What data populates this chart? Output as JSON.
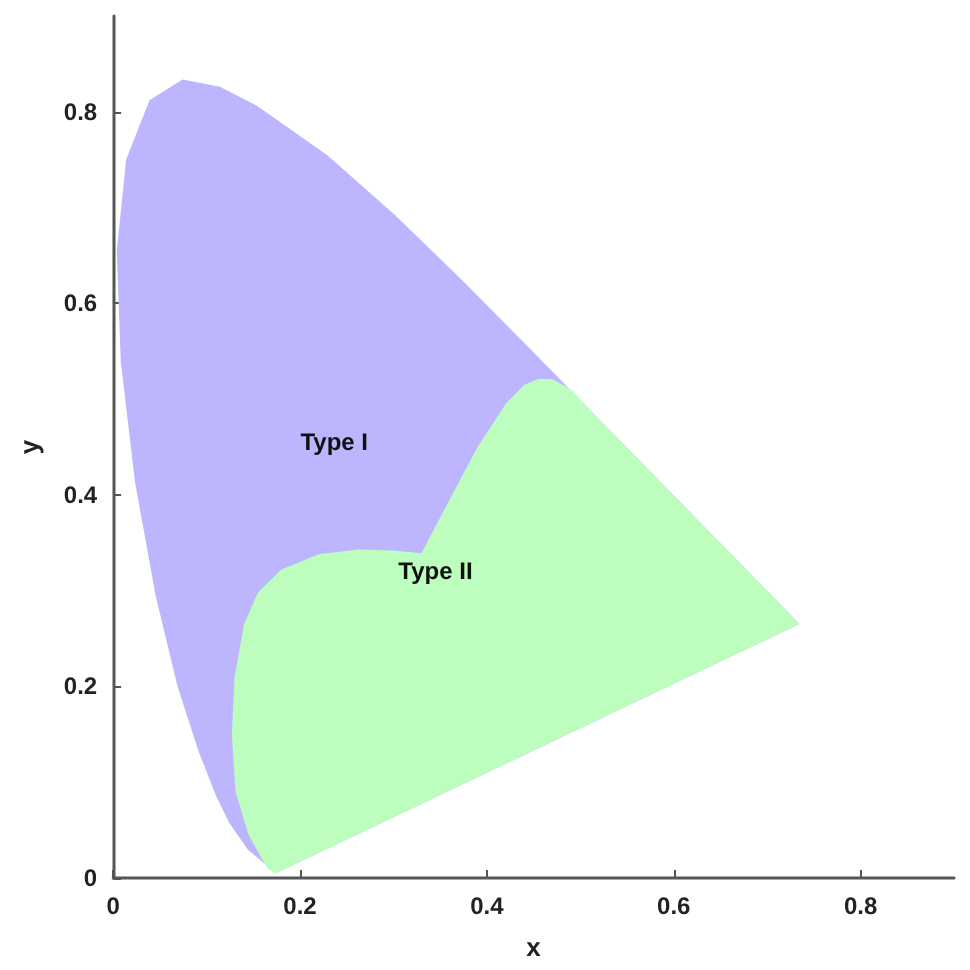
{
  "chart_data": {
    "type": "area",
    "xlabel": "x",
    "ylabel": "y",
    "xlim": [
      0,
      0.9
    ],
    "ylim": [
      0,
      0.9
    ],
    "xticks": [
      0,
      0.2,
      0.4,
      0.6,
      0.8
    ],
    "yticks": [
      0,
      0.2,
      0.4,
      0.6,
      0.8
    ],
    "grid": false,
    "legend": false,
    "series": [
      {
        "name": "Type I",
        "color": "#bdb5fd",
        "x": [
          0.1741,
          0.144,
          0.1241,
          0.1096,
          0.0913,
          0.0687,
          0.0454,
          0.0235,
          0.0082,
          0.0039,
          0.0139,
          0.0389,
          0.0743,
          0.1142,
          0.1547,
          0.2296,
          0.3016,
          0.3731,
          0.4441,
          0.5125,
          0.5752,
          0.627,
          0.6915,
          0.7347
        ],
        "values": [
          0.005,
          0.0297,
          0.0578,
          0.0868,
          0.1327,
          0.2007,
          0.295,
          0.4127,
          0.5384,
          0.6548,
          0.7502,
          0.812,
          0.8338,
          0.8262,
          0.8059,
          0.7543,
          0.6923,
          0.6245,
          0.5547,
          0.4866,
          0.4242,
          0.3725,
          0.3083,
          0.2653
        ]
      },
      {
        "name": "Type II",
        "color": "#bdfdbd",
        "x": [
          0.1741,
          0.7347,
          0.6915,
          0.627,
          0.5752,
          0.5125,
          0.49,
          0.47,
          0.455,
          0.44,
          0.42,
          0.39,
          0.36,
          0.33,
          0.3,
          0.262,
          0.22,
          0.18,
          0.155,
          0.14,
          0.13,
          0.127,
          0.131,
          0.145,
          0.165
        ],
        "values": [
          0.005,
          0.2653,
          0.3083,
          0.3725,
          0.4242,
          0.4866,
          0.51,
          0.521,
          0.521,
          0.515,
          0.495,
          0.45,
          0.395,
          0.339,
          0.342,
          0.343,
          0.338,
          0.322,
          0.298,
          0.265,
          0.21,
          0.15,
          0.09,
          0.045,
          0.01
        ]
      }
    ]
  }
}
